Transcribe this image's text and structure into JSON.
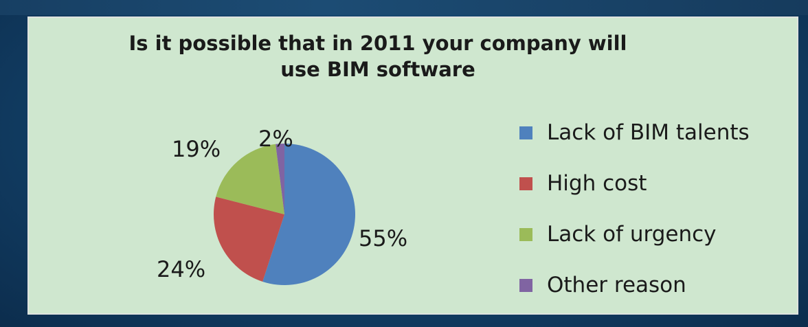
{
  "chart_data": {
    "type": "pie",
    "title_lines": [
      "Is it possible that in 2011 your company will",
      "use BIM software"
    ],
    "categories": [
      "Lack of BIM talents",
      "High cost",
      "Lack of urgency",
      "Other reason"
    ],
    "values": [
      55,
      24,
      19,
      2
    ],
    "data_labels": [
      "55%",
      "24%",
      "19%",
      "2%"
    ],
    "colors": [
      "#4f81bd",
      "#c0504d",
      "#9bbb59",
      "#8064a2"
    ],
    "legend_position": "right"
  }
}
